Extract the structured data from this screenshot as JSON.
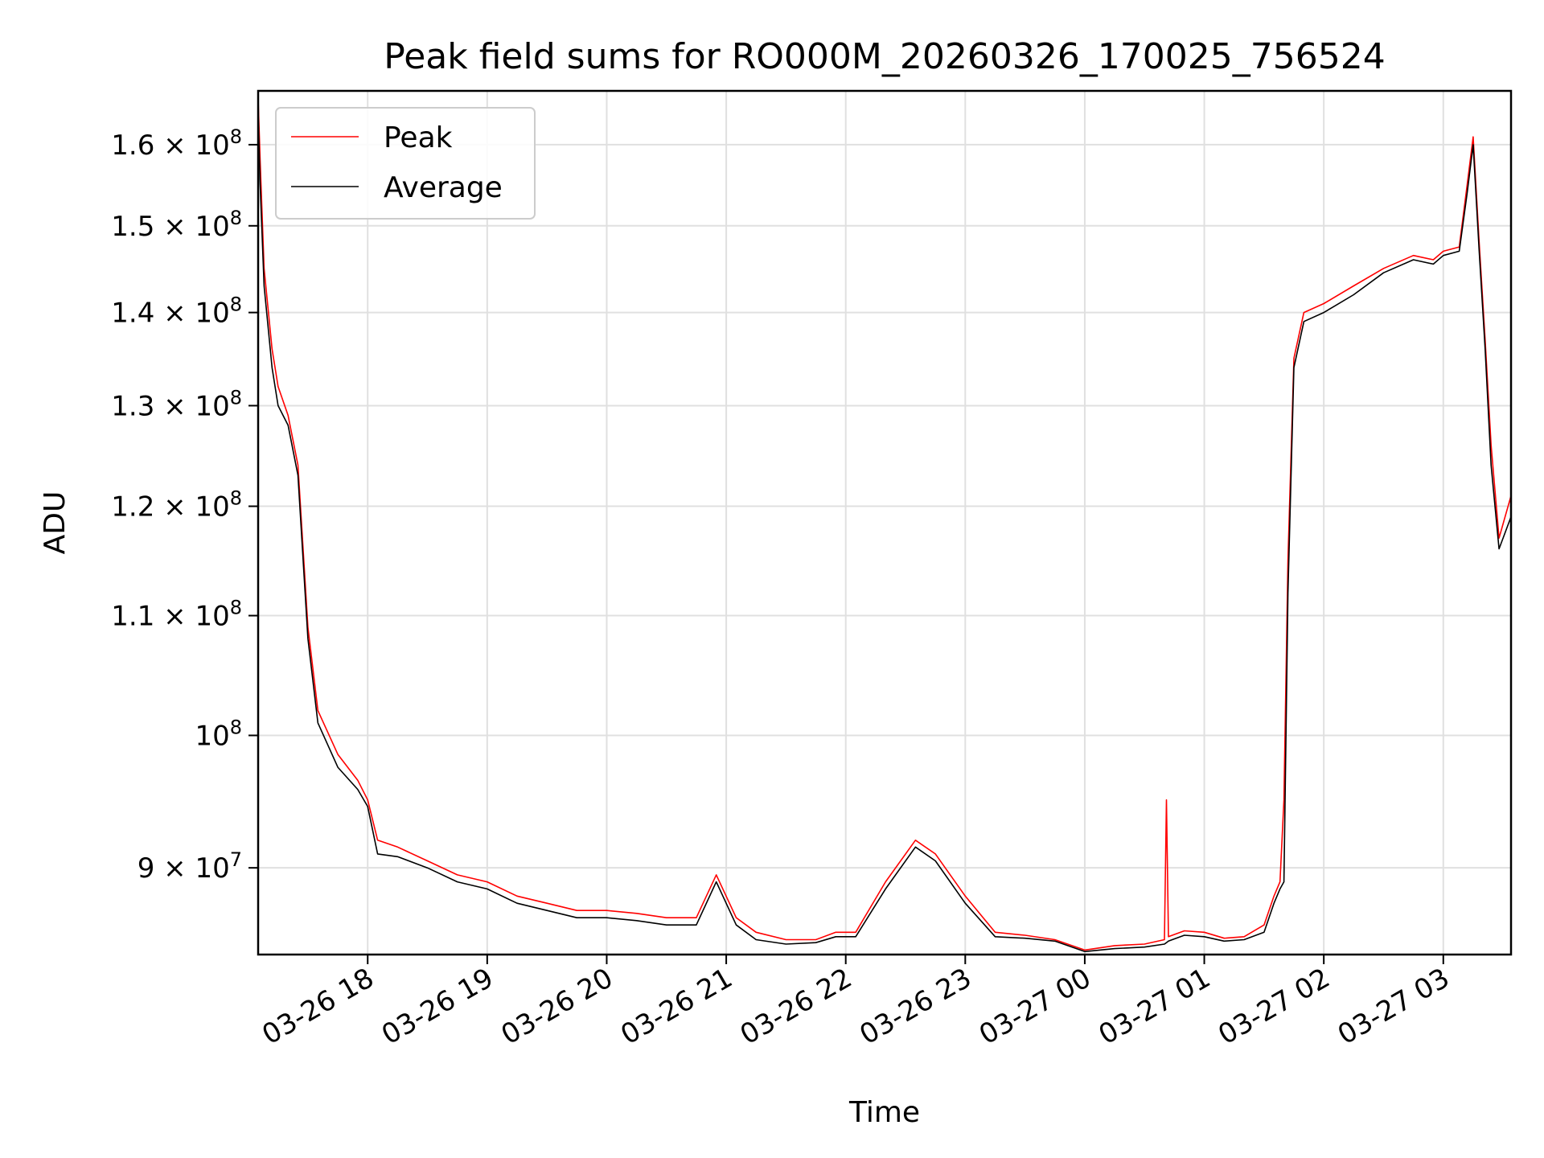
{
  "chart_data": {
    "type": "line",
    "title": "Peak field sums for RO000M_20260326_170025_756524",
    "xlabel": "Time",
    "ylabel": "ADU",
    "y_scale": "log",
    "xlim": [
      "2026-03-26 17:05",
      "2026-03-27 03:34"
    ],
    "ylim": [
      84000000,
      167000000
    ],
    "grid": true,
    "legend_position": "top-left",
    "x_ticks": [
      "03-26 18",
      "03-26 19",
      "03-26 20",
      "03-26 21",
      "03-26 22",
      "03-26 23",
      "03-27 00",
      "03-27 01",
      "03-27 02",
      "03-27 03"
    ],
    "x_tick_times": [
      "2026-03-26 18:00",
      "2026-03-26 19:00",
      "2026-03-26 20:00",
      "2026-03-26 21:00",
      "2026-03-26 22:00",
      "2026-03-26 23:00",
      "2026-03-27 00:00",
      "2026-03-27 01:00",
      "2026-03-27 02:00",
      "2026-03-27 03:00"
    ],
    "y_ticks": [
      {
        "value": 90000000,
        "mantissa": "9",
        "exponent": "7"
      },
      {
        "value": 100000000,
        "mantissa": "",
        "exponent": "8"
      },
      {
        "value": 110000000,
        "mantissa": "1.1",
        "exponent": "8"
      },
      {
        "value": 120000000,
        "mantissa": "1.2",
        "exponent": "8"
      },
      {
        "value": 130000000,
        "mantissa": "1.3",
        "exponent": "8"
      },
      {
        "value": 140000000,
        "mantissa": "1.4",
        "exponent": "8"
      },
      {
        "value": 150000000,
        "mantissa": "1.5",
        "exponent": "8"
      },
      {
        "value": 160000000,
        "mantissa": "1.6",
        "exponent": "8"
      }
    ],
    "series": [
      {
        "name": "Peak",
        "color": "#ff0000",
        "x": [
          "2026-03-26 17:05",
          "2026-03-26 17:06",
          "2026-03-26 17:08",
          "2026-03-26 17:12",
          "2026-03-26 17:15",
          "2026-03-26 17:20",
          "2026-03-26 17:25",
          "2026-03-26 17:30",
          "2026-03-26 17:35",
          "2026-03-26 17:45",
          "2026-03-26 17:55",
          "2026-03-26 18:00",
          "2026-03-26 18:05",
          "2026-03-26 18:15",
          "2026-03-26 18:30",
          "2026-03-26 18:45",
          "2026-03-26 19:00",
          "2026-03-26 19:15",
          "2026-03-26 19:30",
          "2026-03-26 19:45",
          "2026-03-26 20:00",
          "2026-03-26 20:15",
          "2026-03-26 20:30",
          "2026-03-26 20:45",
          "2026-03-26 20:55",
          "2026-03-26 21:05",
          "2026-03-26 21:15",
          "2026-03-26 21:30",
          "2026-03-26 21:45",
          "2026-03-26 21:55",
          "2026-03-26 22:05",
          "2026-03-26 22:20",
          "2026-03-26 22:35",
          "2026-03-26 22:45",
          "2026-03-26 23:00",
          "2026-03-26 23:15",
          "2026-03-26 23:30",
          "2026-03-26 23:45",
          "2026-03-27 00:00",
          "2026-03-27 00:15",
          "2026-03-27 00:30",
          "2026-03-27 00:40",
          "2026-03-27 00:41",
          "2026-03-27 00:42",
          "2026-03-27 00:50",
          "2026-03-27 01:00",
          "2026-03-27 01:10",
          "2026-03-27 01:20",
          "2026-03-27 01:30",
          "2026-03-27 01:35",
          "2026-03-27 01:38",
          "2026-03-27 01:40",
          "2026-03-27 01:42",
          "2026-03-27 01:45",
          "2026-03-27 01:50",
          "2026-03-27 02:00",
          "2026-03-27 02:15",
          "2026-03-27 02:30",
          "2026-03-27 02:45",
          "2026-03-27 02:55",
          "2026-03-27 03:00",
          "2026-03-27 03:08",
          "2026-03-27 03:12",
          "2026-03-27 03:15",
          "2026-03-27 03:18",
          "2026-03-27 03:21",
          "2026-03-27 03:24",
          "2026-03-27 03:28",
          "2026-03-27 03:31",
          "2026-03-27 03:34"
        ],
        "values": [
          166000000,
          158000000,
          145000000,
          136000000,
          132000000,
          129000000,
          124000000,
          109000000,
          102000000,
          98500000,
          96500000,
          95000000,
          92000000,
          91500000,
          90500000,
          89500000,
          89000000,
          88000000,
          87500000,
          87000000,
          87000000,
          86800000,
          86500000,
          86500000,
          89500000,
          86500000,
          85500000,
          85000000,
          85000000,
          85500000,
          85500000,
          89000000,
          92000000,
          91000000,
          88000000,
          85500000,
          85300000,
          85000000,
          84300000,
          84600000,
          84700000,
          85000000,
          95000000,
          85200000,
          85600000,
          85500000,
          85100000,
          85200000,
          86000000,
          88000000,
          89000000,
          95000000,
          115000000,
          135000000,
          140000000,
          141000000,
          143000000,
          145000000,
          146500000,
          146000000,
          147000000,
          147500000,
          155000000,
          161000000,
          148000000,
          137000000,
          126000000,
          117000000,
          119000000,
          121000000
        ]
      },
      {
        "name": "Average",
        "color": "#000000",
        "x": [
          "2026-03-26 17:05",
          "2026-03-26 17:06",
          "2026-03-26 17:08",
          "2026-03-26 17:12",
          "2026-03-26 17:15",
          "2026-03-26 17:20",
          "2026-03-26 17:25",
          "2026-03-26 17:30",
          "2026-03-26 17:35",
          "2026-03-26 17:45",
          "2026-03-26 17:55",
          "2026-03-26 18:00",
          "2026-03-26 18:05",
          "2026-03-26 18:15",
          "2026-03-26 18:30",
          "2026-03-26 18:45",
          "2026-03-26 19:00",
          "2026-03-26 19:15",
          "2026-03-26 19:30",
          "2026-03-26 19:45",
          "2026-03-26 20:00",
          "2026-03-26 20:15",
          "2026-03-26 20:30",
          "2026-03-26 20:45",
          "2026-03-26 20:55",
          "2026-03-26 21:05",
          "2026-03-26 21:15",
          "2026-03-26 21:30",
          "2026-03-26 21:45",
          "2026-03-26 21:55",
          "2026-03-26 22:05",
          "2026-03-26 22:20",
          "2026-03-26 22:35",
          "2026-03-26 22:45",
          "2026-03-26 23:00",
          "2026-03-26 23:15",
          "2026-03-26 23:30",
          "2026-03-26 23:45",
          "2026-03-27 00:00",
          "2026-03-27 00:15",
          "2026-03-27 00:30",
          "2026-03-27 00:40",
          "2026-03-27 00:41",
          "2026-03-27 00:42",
          "2026-03-27 00:50",
          "2026-03-27 01:00",
          "2026-03-27 01:10",
          "2026-03-27 01:20",
          "2026-03-27 01:30",
          "2026-03-27 01:35",
          "2026-03-27 01:38",
          "2026-03-27 01:40",
          "2026-03-27 01:42",
          "2026-03-27 01:45",
          "2026-03-27 01:50",
          "2026-03-27 02:00",
          "2026-03-27 02:15",
          "2026-03-27 02:30",
          "2026-03-27 02:45",
          "2026-03-27 02:55",
          "2026-03-27 03:00",
          "2026-03-27 03:08",
          "2026-03-27 03:12",
          "2026-03-27 03:15",
          "2026-03-27 03:18",
          "2026-03-27 03:21",
          "2026-03-27 03:24",
          "2026-03-27 03:28",
          "2026-03-27 03:31",
          "2026-03-27 03:34"
        ],
        "values": [
          164000000,
          155000000,
          143000000,
          134000000,
          130000000,
          128000000,
          123000000,
          108000000,
          101000000,
          97500000,
          95800000,
          94500000,
          91000000,
          90800000,
          90000000,
          89000000,
          88500000,
          87500000,
          87000000,
          86500000,
          86500000,
          86300000,
          86000000,
          86000000,
          89000000,
          86000000,
          85000000,
          84700000,
          84800000,
          85200000,
          85200000,
          88500000,
          91500000,
          90500000,
          87500000,
          85200000,
          85100000,
          84900000,
          84200000,
          84400000,
          84500000,
          84700000,
          84800000,
          84900000,
          85300000,
          85200000,
          84900000,
          85000000,
          85500000,
          87500000,
          88500000,
          89000000,
          112000000,
          134000000,
          139000000,
          140000000,
          142000000,
          144500000,
          146000000,
          145500000,
          146500000,
          147000000,
          154000000,
          160000000,
          147000000,
          136000000,
          124000000,
          116000000,
          117500000,
          119000000
        ]
      }
    ]
  }
}
